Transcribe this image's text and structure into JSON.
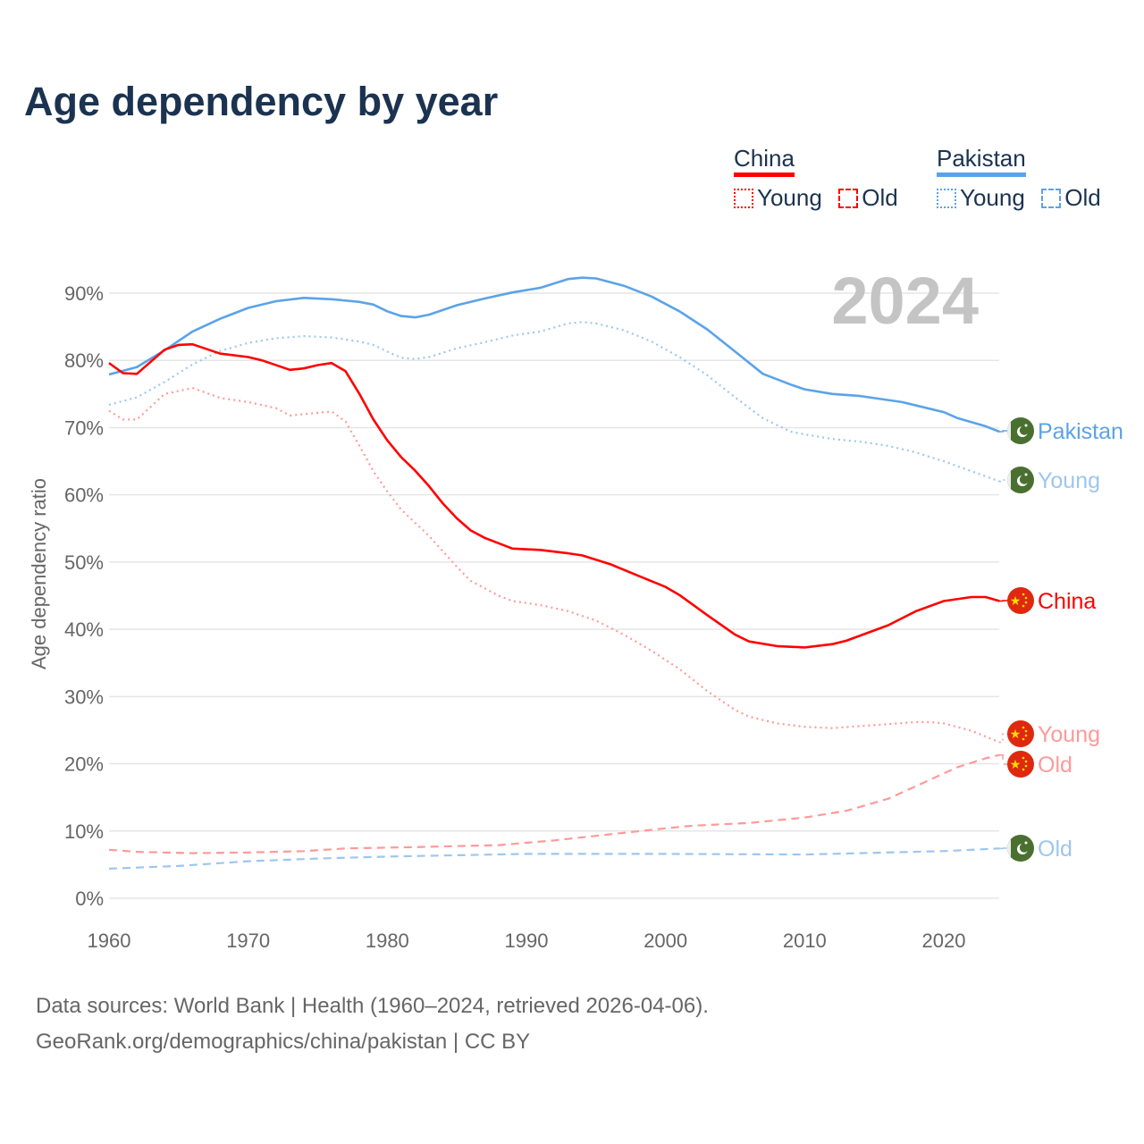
{
  "title": "Age dependency by year",
  "legend": {
    "groups": [
      {
        "name": "China",
        "color": "#ff0000",
        "light": "#ff9999",
        "young": "Young",
        "old": "Old"
      },
      {
        "name": "Pakistan",
        "color": "#5ba3e8",
        "light": "#9dc6ef",
        "young": "Young",
        "old": "Old"
      }
    ]
  },
  "year_watermark": "2024",
  "source": {
    "line1": "Data sources: World Bank | Health (1960–2024, retrieved 2026-04-06).",
    "line2": "GeoRank.org/demographics/china/pakistan | CC BY"
  },
  "chart_data": {
    "type": "line",
    "title": "Age dependency by year",
    "xlabel": "",
    "ylabel": "Age dependency ratio",
    "xlim": [
      1960,
      2024
    ],
    "ylim": [
      0,
      90
    ],
    "x_ticks": [
      1960,
      1970,
      1980,
      1990,
      2000,
      2010,
      2020
    ],
    "y_ticks": [
      0,
      10,
      20,
      30,
      40,
      50,
      60,
      70,
      80,
      90
    ],
    "y_tick_labels": [
      "0%",
      "10%",
      "20%",
      "30%",
      "40%",
      "50%",
      "60%",
      "70%",
      "80%",
      "90%"
    ],
    "grid": true,
    "legend_position": "top-right",
    "series": [
      {
        "name": "Pakistan",
        "end_label": "Pakistan",
        "flag": "pakistan-flag",
        "color": "#5ba3e8",
        "style": "solid",
        "x": [
          1960,
          1962,
          1964,
          1966,
          1968,
          1970,
          1972,
          1974,
          1976,
          1978,
          1979,
          1980,
          1981,
          1982,
          1983,
          1985,
          1987,
          1989,
          1991,
          1993,
          1994,
          1995,
          1997,
          1999,
          2001,
          2003,
          2005,
          2007,
          2008,
          2009,
          2010,
          2012,
          2014,
          2017,
          2020,
          2021,
          2023,
          2024
        ],
        "y": [
          77.9,
          79,
          81.5,
          84.3,
          86.2,
          87.8,
          88.8,
          89.3,
          89.1,
          88.7,
          88.3,
          87.3,
          86.6,
          86.4,
          86.8,
          88.2,
          89.2,
          90.1,
          90.8,
          92.1,
          92.3,
          92.2,
          91.1,
          89.5,
          87.3,
          84.6,
          81.3,
          78.0,
          77.2,
          76.4,
          75.7,
          75.0,
          74.7,
          73.8,
          72.3,
          71.4,
          70.2,
          69.4
        ]
      },
      {
        "name": "Pakistan Young",
        "end_label": "Young",
        "flag": "pakistan-flag",
        "color": "#9dc6ef",
        "style": "dotted",
        "x": [
          1960,
          1962,
          1964,
          1966,
          1968,
          1970,
          1972,
          1974,
          1976,
          1978,
          1979,
          1980,
          1981,
          1982,
          1983,
          1985,
          1987,
          1989,
          1991,
          1993,
          1994,
          1995,
          1997,
          1999,
          2001,
          2003,
          2005,
          2007,
          2009,
          2010,
          2012,
          2014,
          2016,
          2018,
          2020,
          2022,
          2024
        ],
        "y": [
          73.4,
          74.5,
          76.8,
          79.4,
          81.4,
          82.6,
          83.3,
          83.6,
          83.4,
          82.8,
          82.3,
          81.3,
          80.4,
          80.2,
          80.5,
          81.8,
          82.7,
          83.7,
          84.3,
          85.5,
          85.7,
          85.5,
          84.5,
          82.8,
          80.5,
          77.8,
          74.5,
          71.4,
          69.4,
          69.0,
          68.3,
          67.9,
          67.3,
          66.3,
          65.0,
          63.5,
          62.0
        ]
      },
      {
        "name": "China",
        "end_label": "China",
        "flag": "china-flag",
        "color": "#ff0000",
        "style": "solid",
        "x": [
          1960,
          1961,
          1962,
          1964,
          1965,
          1966,
          1968,
          1970,
          1971,
          1973,
          1974,
          1975,
          1976,
          1977,
          1978,
          1979,
          1980,
          1981,
          1982,
          1983,
          1984,
          1985,
          1986,
          1987,
          1989,
          1991,
          1993,
          1994,
          1996,
          1998,
          2000,
          2001,
          2003,
          2005,
          2006,
          2008,
          2010,
          2012,
          2013,
          2016,
          2018,
          2020,
          2022,
          2023,
          2024
        ],
        "y": [
          79.6,
          78.1,
          78.0,
          81.6,
          82.3,
          82.4,
          81.0,
          80.5,
          80.0,
          78.6,
          78.8,
          79.3,
          79.6,
          78.4,
          75.0,
          71.2,
          68.1,
          65.6,
          63.6,
          61.3,
          58.7,
          56.5,
          54.7,
          53.6,
          52.0,
          51.8,
          51.3,
          51.0,
          49.7,
          48.0,
          46.3,
          45.1,
          42.1,
          39.2,
          38.2,
          37.5,
          37.3,
          37.8,
          38.3,
          40.6,
          42.7,
          44.2,
          44.8,
          44.8,
          44.2
        ]
      },
      {
        "name": "China Young",
        "end_label": "Young",
        "flag": "china-flag",
        "color": "#ff9999",
        "style": "dotted",
        "x": [
          1960,
          1961,
          1962,
          1964,
          1966,
          1968,
          1970,
          1972,
          1973,
          1975,
          1976,
          1977,
          1978,
          1979,
          1980,
          1981,
          1983,
          1985,
          1986,
          1988,
          1989,
          1991,
          1993,
          1995,
          1997,
          1999,
          2001,
          2003,
          2005,
          2006,
          2008,
          2010,
          2012,
          2014,
          2016,
          2018,
          2019,
          2020,
          2022,
          2024
        ],
        "y": [
          72.5,
          71.2,
          71.2,
          75.0,
          75.9,
          74.4,
          73.8,
          72.9,
          71.8,
          72.2,
          72.4,
          70.9,
          67.3,
          63.5,
          60.5,
          57.8,
          53.9,
          49.3,
          47.2,
          45.0,
          44.2,
          43.6,
          42.7,
          41.3,
          39.2,
          36.8,
          34.1,
          30.8,
          28.0,
          27.0,
          26.0,
          25.5,
          25.3,
          25.6,
          25.9,
          26.2,
          26.2,
          26.0,
          24.9,
          23.2
        ]
      },
      {
        "name": "China Old",
        "end_label": "Old",
        "flag": "china-flag",
        "color": "#ff9999",
        "style": "dashed",
        "x": [
          1960,
          1962,
          1966,
          1970,
          1974,
          1977,
          1982,
          1988,
          1992,
          1996,
          2000,
          2002,
          2006,
          2010,
          2013,
          2016,
          2019,
          2021,
          2023,
          2024
        ],
        "y": [
          7.2,
          6.9,
          6.7,
          6.8,
          7.0,
          7.4,
          7.6,
          7.9,
          8.6,
          9.5,
          10.4,
          10.8,
          11.2,
          12.0,
          13.0,
          14.8,
          17.6,
          19.5,
          20.8,
          21.3
        ]
      },
      {
        "name": "Pakistan Old",
        "end_label": "Old",
        "flag": "pakistan-flag",
        "color": "#9dc6ef",
        "style": "dashed",
        "x": [
          1960,
          1965,
          1970,
          1975,
          1980,
          1990,
          2000,
          2010,
          2020,
          2024
        ],
        "y": [
          4.4,
          4.8,
          5.5,
          5.9,
          6.2,
          6.6,
          6.6,
          6.5,
          7.0,
          7.4
        ]
      }
    ]
  }
}
